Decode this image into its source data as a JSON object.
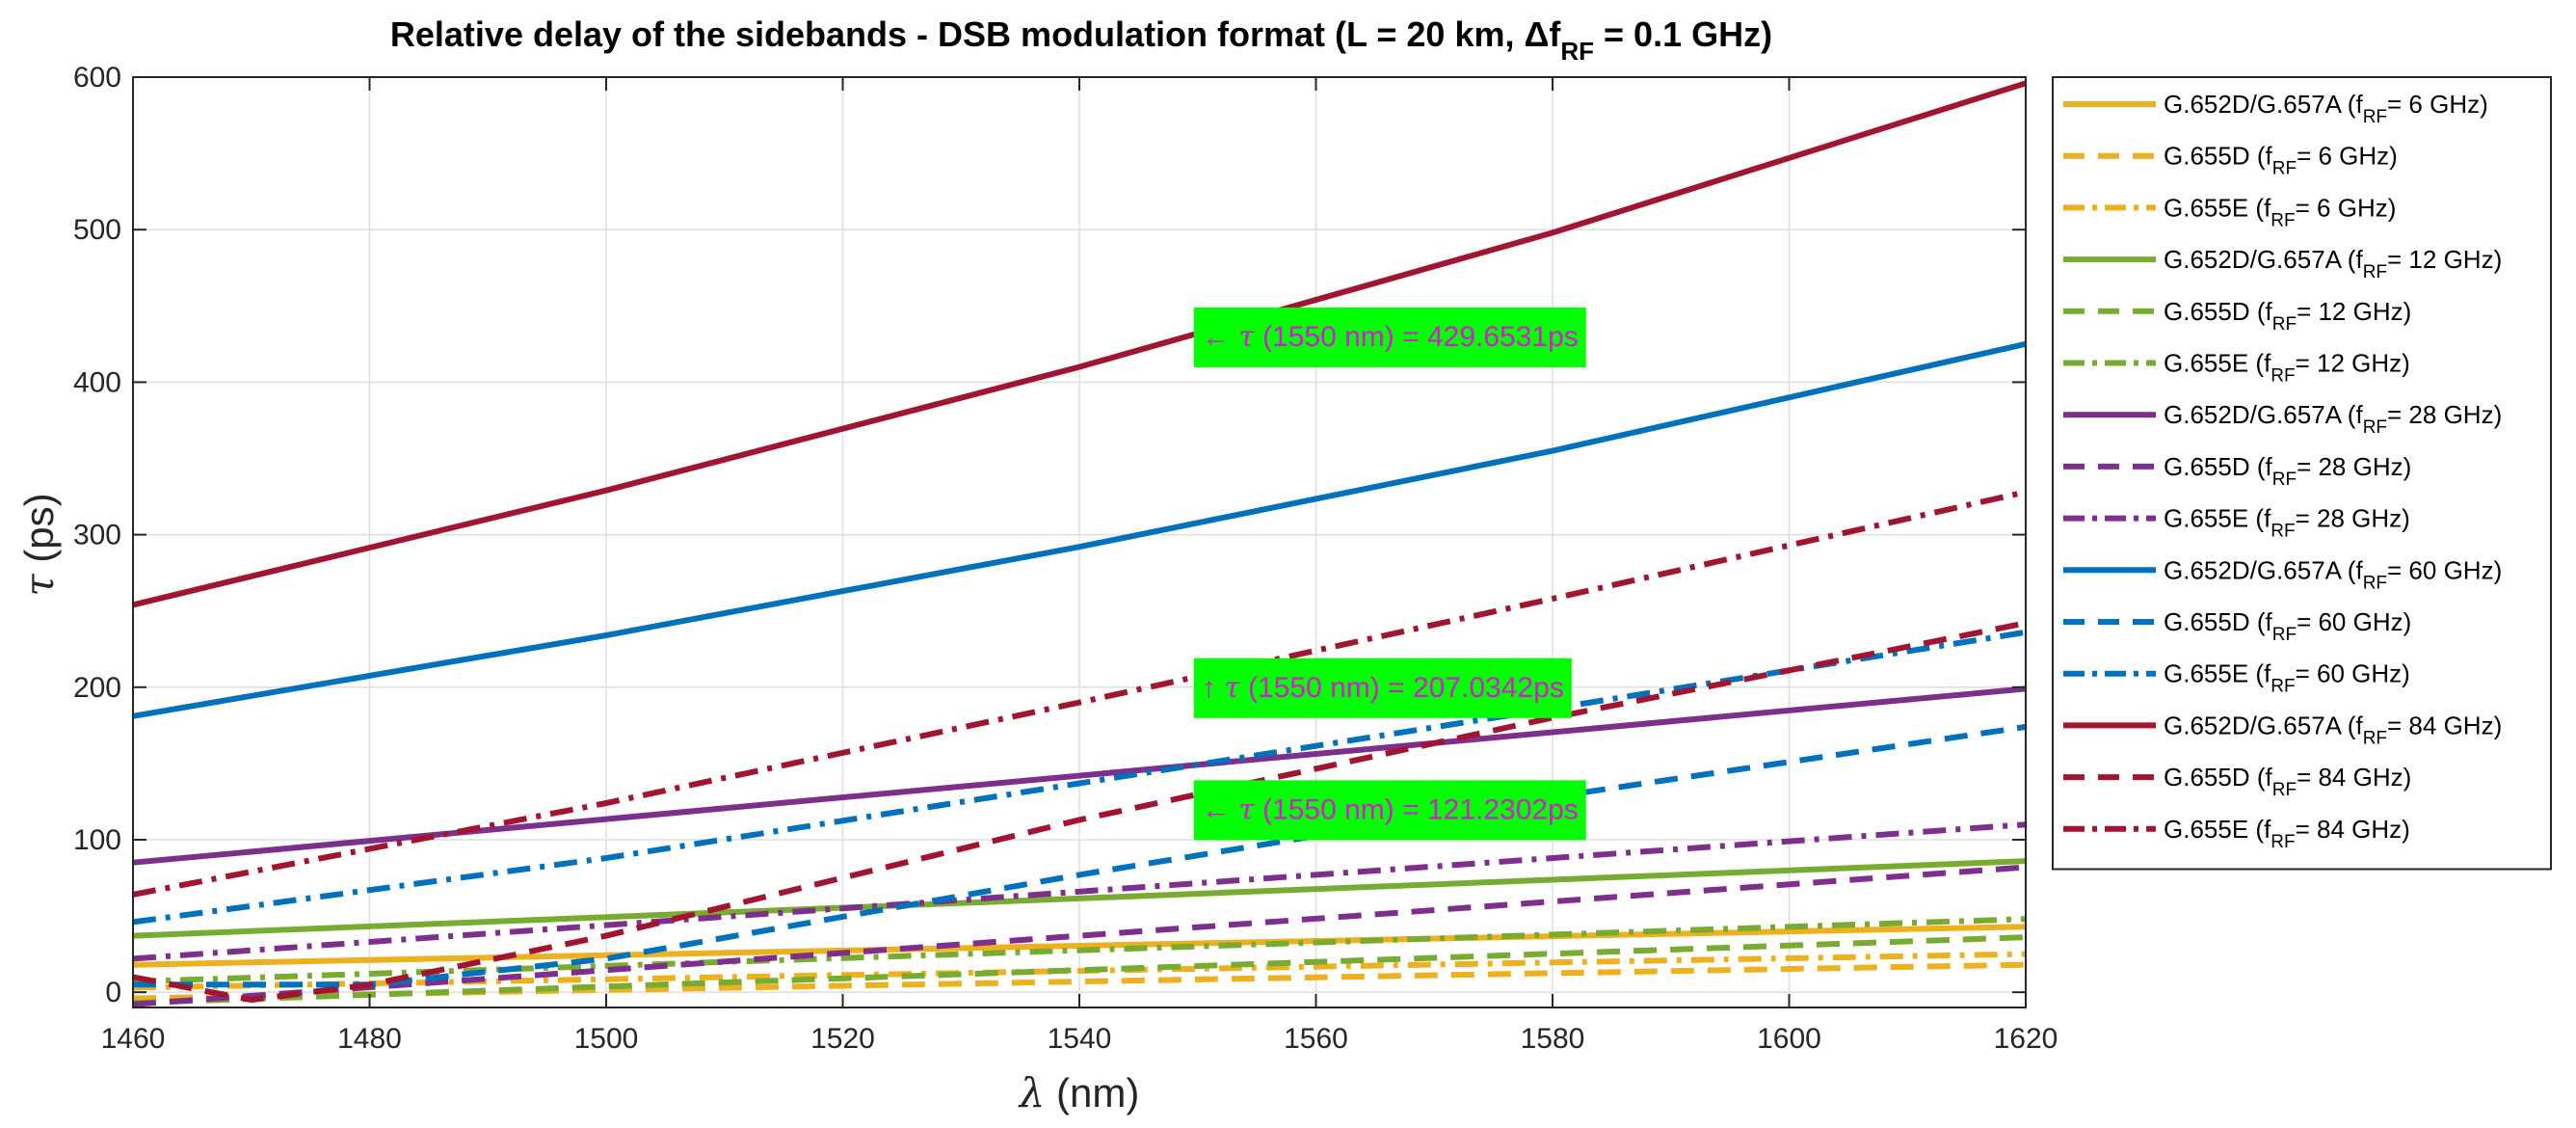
{
  "chart_data": {
    "type": "line",
    "title": {
      "main": "Relative delay of the sidebands - DSB modulation format (L = 20 km, ",
      "delta": "Δ",
      "f": "f",
      "sub": "RF",
      "end": " = 0.1 GHz)"
    },
    "xlabel": {
      "sym": "λ",
      "unit": " (nm)"
    },
    "ylabel": {
      "sym": "τ",
      "unit": " (ps)"
    },
    "xlim": [
      1460,
      1620
    ],
    "ylim": [
      -10,
      600
    ],
    "xticks": [
      1460,
      1480,
      1500,
      1520,
      1540,
      1560,
      1580,
      1600,
      1620
    ],
    "yticks": [
      0,
      100,
      200,
      300,
      400,
      500,
      600
    ],
    "grid": true,
    "legend_position": "outside-right",
    "colors": {
      "yellow": "#EDB120",
      "green": "#77AC30",
      "purple": "#7E2F8E",
      "blue": "#0072BD",
      "red": "#A2142F",
      "annotation_bg": "#00FF00",
      "annotation_text": "#D61AD6"
    },
    "series": [
      {
        "fiber": "G.652D/G.657A",
        "f": "f",
        "sub": "RF",
        "freq": "= 6 GHz)",
        "color": "#EDB120",
        "style": "solid",
        "x": [
          1460,
          1620
        ],
        "y": [
          18,
          43
        ]
      },
      {
        "fiber": "G.655D",
        "f": "f",
        "sub": "RF",
        "freq": "= 6 GHz)",
        "color": "#EDB120",
        "style": "dash",
        "x": [
          1460,
          1620
        ],
        "y": [
          -4,
          18
        ]
      },
      {
        "fiber": "G.655E",
        "f": "f",
        "sub": "RF",
        "freq": "= 6 GHz)",
        "color": "#EDB120",
        "style": "dashdot",
        "x": [
          1460,
          1620
        ],
        "y": [
          3,
          25
        ]
      },
      {
        "fiber": "G.652D/G.657A",
        "f": "f",
        "sub": "RF",
        "freq": "= 12 GHz)",
        "color": "#77AC30",
        "style": "solid",
        "x": [
          1460,
          1620
        ],
        "y": [
          37,
          86
        ]
      },
      {
        "fiber": "G.655D",
        "f": "f",
        "sub": "RF",
        "freq": "= 12 GHz)",
        "color": "#77AC30",
        "style": "dash",
        "x": [
          1460,
          1620
        ],
        "y": [
          -7,
          36
        ]
      },
      {
        "fiber": "G.655E",
        "f": "f",
        "sub": "RF",
        "freq": "= 12 GHz)",
        "color": "#77AC30",
        "style": "dashdot",
        "x": [
          1460,
          1620
        ],
        "y": [
          7,
          48
        ]
      },
      {
        "fiber": "G.652D/G.657A",
        "f": "f",
        "sub": "RF",
        "freq": "= 28 GHz)",
        "color": "#7E2F8E",
        "style": "solid",
        "x": [
          1460,
          1620
        ],
        "y": [
          85,
          199
        ]
      },
      {
        "fiber": "G.655D",
        "f": "f",
        "sub": "RF",
        "freq": "= 28 GHz)",
        "color": "#7E2F8E",
        "style": "dash",
        "x": [
          1460,
          1620
        ],
        "y": [
          -8,
          82
        ]
      },
      {
        "fiber": "G.655E",
        "f": "f",
        "sub": "RF",
        "freq": "= 28 GHz)",
        "color": "#7E2F8E",
        "style": "dashdot",
        "x": [
          1460,
          1620
        ],
        "y": [
          22,
          110
        ]
      },
      {
        "fiber": "G.652D/G.657A",
        "f": "f",
        "sub": "RF",
        "freq": "= 60 GHz)",
        "color": "#0072BD",
        "style": "solid",
        "x": [
          1460,
          1500,
          1540,
          1580,
          1620
        ],
        "y": [
          181,
          234,
          292,
          355,
          425
        ]
      },
      {
        "fiber": "G.655D",
        "f": "f",
        "sub": "RF",
        "freq": "= 60 GHz)",
        "color": "#0072BD",
        "style": "dash",
        "x": [
          1460,
          1480,
          1500,
          1540,
          1580,
          1620
        ],
        "y": [
          5,
          5,
          22,
          77,
          128,
          174
        ]
      },
      {
        "fiber": "G.655E",
        "f": "f",
        "sub": "RF",
        "freq": "= 60 GHz)",
        "color": "#0072BD",
        "style": "dashdot",
        "x": [
          1460,
          1500,
          1540,
          1580,
          1620
        ],
        "y": [
          46,
          88,
          137,
          186,
          236
        ]
      },
      {
        "fiber": "G.652D/G.657A",
        "f": "f",
        "sub": "RF",
        "freq": "= 84 GHz)",
        "color": "#A2142F",
        "style": "solid",
        "x": [
          1460,
          1500,
          1540,
          1580,
          1620
        ],
        "y": [
          254,
          329,
          410,
          498,
          596
        ]
      },
      {
        "fiber": "G.655D",
        "f": "f",
        "sub": "RF",
        "freq": "= 84 GHz)",
        "color": "#A2142F",
        "style": "dash",
        "x": [
          1460,
          1470,
          1480,
          1500,
          1540,
          1580,
          1620
        ],
        "y": [
          10,
          -5,
          5,
          37,
          113,
          180,
          242
        ]
      },
      {
        "fiber": "G.655E",
        "f": "f",
        "sub": "RF",
        "freq": "= 84 GHz)",
        "color": "#A2142F",
        "style": "dashdot",
        "x": [
          1460,
          1500,
          1540,
          1580,
          1620
        ],
        "y": [
          64,
          124,
          190,
          258,
          328
        ]
      }
    ],
    "annotations": [
      {
        "arrow": "←",
        "sym": "τ",
        "text": " (1550 nm) = 429.6531ps",
        "x": 1550,
        "y": 429.6531,
        "anchor_y": 430
      },
      {
        "arrow": "↑",
        "sym": "τ",
        "text": " (1550 nm) = 207.0342ps",
        "x": 1550,
        "y": 207.0342,
        "anchor_y": 200
      },
      {
        "arrow": "←",
        "sym": "τ",
        "text": " (1550 nm) = 121.2302ps",
        "x": 1550,
        "y": 121.2302,
        "anchor_y": 120
      }
    ]
  }
}
